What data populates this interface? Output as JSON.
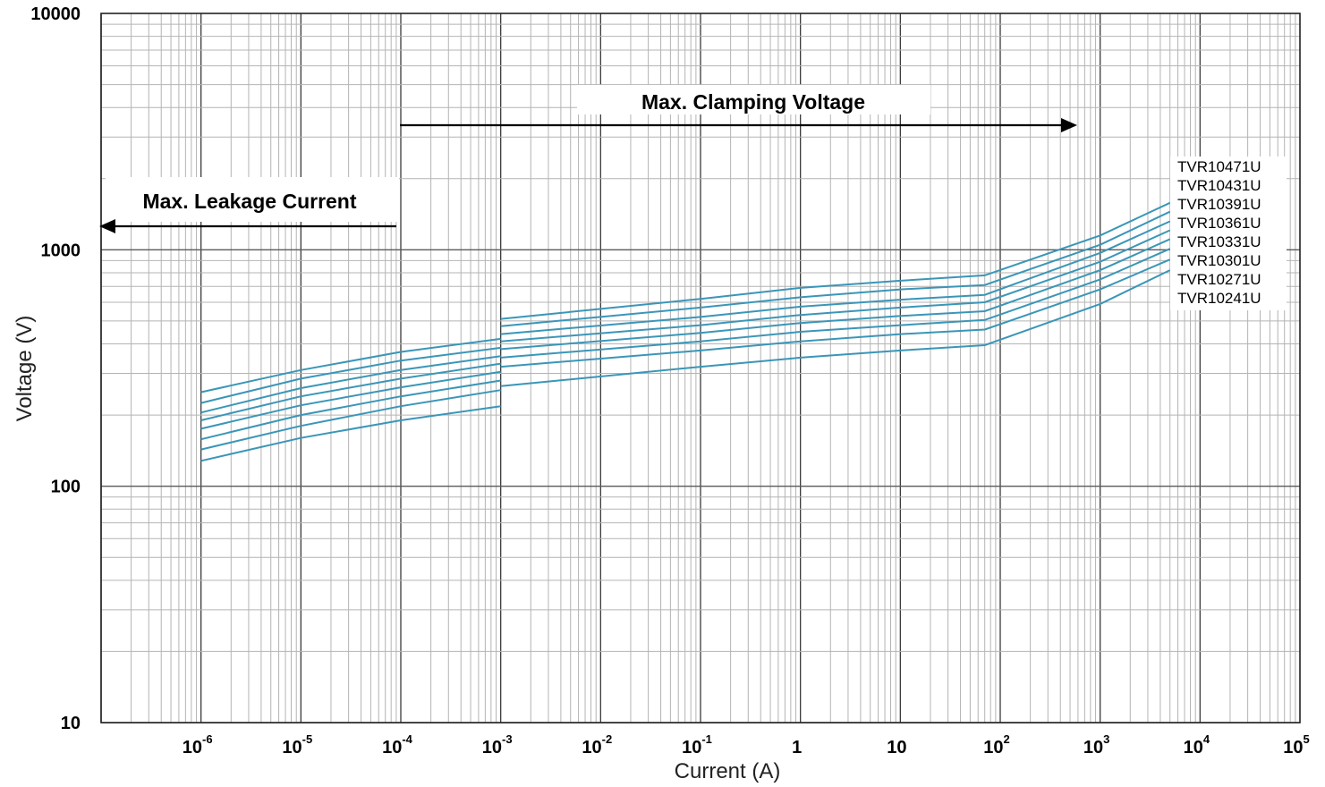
{
  "chart_data": {
    "type": "line",
    "title": "",
    "xlabel": "Current (A)",
    "ylabel": "Voltage   (V)",
    "xscale": "log",
    "yscale": "log",
    "xlim": [
      1e-07,
      100000
    ],
    "ylim": [
      10,
      10000
    ],
    "grid": true,
    "x_tick_labels": [
      {
        "value": 1e-06,
        "base": "10",
        "exp": "-6"
      },
      {
        "value": 1e-05,
        "base": "10",
        "exp": "-5"
      },
      {
        "value": 0.0001,
        "base": "10",
        "exp": "-4"
      },
      {
        "value": 0.001,
        "base": "10",
        "exp": "-3"
      },
      {
        "value": 0.01,
        "base": "10",
        "exp": "-2"
      },
      {
        "value": 0.1,
        "base": "10",
        "exp": "-1"
      },
      {
        "value": 1,
        "base": "1",
        "exp": ""
      },
      {
        "value": 10,
        "base": "10",
        "exp": ""
      },
      {
        "value": 100,
        "base": "10",
        "exp": "2"
      },
      {
        "value": 1000,
        "base": "10",
        "exp": "3"
      },
      {
        "value": 10000,
        "base": "10",
        "exp": "4"
      },
      {
        "value": 100000,
        "base": "10",
        "exp": "5"
      }
    ],
    "y_tick_labels": [
      {
        "value": 10000,
        "label": "10000"
      },
      {
        "value": 1000,
        "label": "1000"
      },
      {
        "value": 100,
        "label": "100"
      },
      {
        "value": 10,
        "label": "10"
      }
    ],
    "annotations": [
      {
        "text": "Max. Clamping Voltage",
        "arrow": "right"
      },
      {
        "text": "Max. Leakage Current",
        "arrow": "left"
      }
    ],
    "series_color": "#3a96b8",
    "series": [
      {
        "name": "TVR10471U",
        "leakage": {
          "x": [
            1e-06,
            1e-05,
            0.0001,
            0.001
          ],
          "y": [
            250,
            310,
            370,
            420
          ]
        },
        "clamping": {
          "x": [
            0.001,
            0.1,
            1,
            10,
            70,
            1000,
            5000
          ],
          "y": [
            510,
            620,
            690,
            740,
            780,
            1150,
            1580
          ]
        }
      },
      {
        "name": "TVR10431U",
        "leakage": {
          "x": [
            1e-06,
            1e-05,
            0.0001,
            0.001
          ],
          "y": [
            225,
            285,
            340,
            385
          ]
        },
        "clamping": {
          "x": [
            0.001,
            0.1,
            1,
            10,
            70,
            1000,
            5000
          ],
          "y": [
            475,
            570,
            630,
            680,
            710,
            1050,
            1450
          ]
        }
      },
      {
        "name": "TVR10391U",
        "leakage": {
          "x": [
            1e-06,
            1e-05,
            0.0001,
            0.001
          ],
          "y": [
            205,
            260,
            310,
            355
          ]
        },
        "clamping": {
          "x": [
            0.001,
            0.1,
            1,
            10,
            70,
            1000,
            5000
          ],
          "y": [
            440,
            520,
            575,
            615,
            645,
            970,
            1320
          ]
        }
      },
      {
        "name": "TVR10361U",
        "leakage": {
          "x": [
            1e-06,
            1e-05,
            0.0001,
            0.001
          ],
          "y": [
            190,
            240,
            285,
            330
          ]
        },
        "clamping": {
          "x": [
            0.001,
            0.1,
            1,
            10,
            70,
            1000,
            5000
          ],
          "y": [
            410,
            480,
            530,
            570,
            600,
            890,
            1210
          ]
        }
      },
      {
        "name": "TVR10331U",
        "leakage": {
          "x": [
            1e-06,
            1e-05,
            0.0001,
            0.001
          ],
          "y": [
            175,
            220,
            262,
            305
          ]
        },
        "clamping": {
          "x": [
            0.001,
            0.1,
            1,
            10,
            70,
            1000,
            5000
          ],
          "y": [
            380,
            445,
            490,
            525,
            550,
            820,
            1110
          ]
        }
      },
      {
        "name": "TVR10301U",
        "leakage": {
          "x": [
            1e-06,
            1e-05,
            0.0001,
            0.001
          ],
          "y": [
            158,
            200,
            240,
            280
          ]
        },
        "clamping": {
          "x": [
            0.001,
            0.1,
            1,
            10,
            70,
            1000,
            5000
          ],
          "y": [
            350,
            410,
            450,
            480,
            505,
            750,
            1010
          ]
        }
      },
      {
        "name": "TVR10271U",
        "leakage": {
          "x": [
            1e-06,
            1e-05,
            0.0001,
            0.001
          ],
          "y": [
            143,
            180,
            218,
            255
          ]
        },
        "clamping": {
          "x": [
            0.001,
            0.1,
            1,
            10,
            70,
            1000,
            5000
          ],
          "y": [
            320,
            375,
            410,
            440,
            460,
            680,
            910
          ]
        }
      },
      {
        "name": "TVR10241U",
        "leakage": {
          "x": [
            1e-06,
            1e-05,
            0.0001,
            0.001
          ],
          "y": [
            128,
            160,
            190,
            218
          ]
        },
        "clamping": {
          "x": [
            0.001,
            0.1,
            1,
            10,
            70,
            1000,
            5000
          ],
          "y": [
            265,
            320,
            350,
            375,
            395,
            590,
            820
          ]
        }
      }
    ]
  }
}
